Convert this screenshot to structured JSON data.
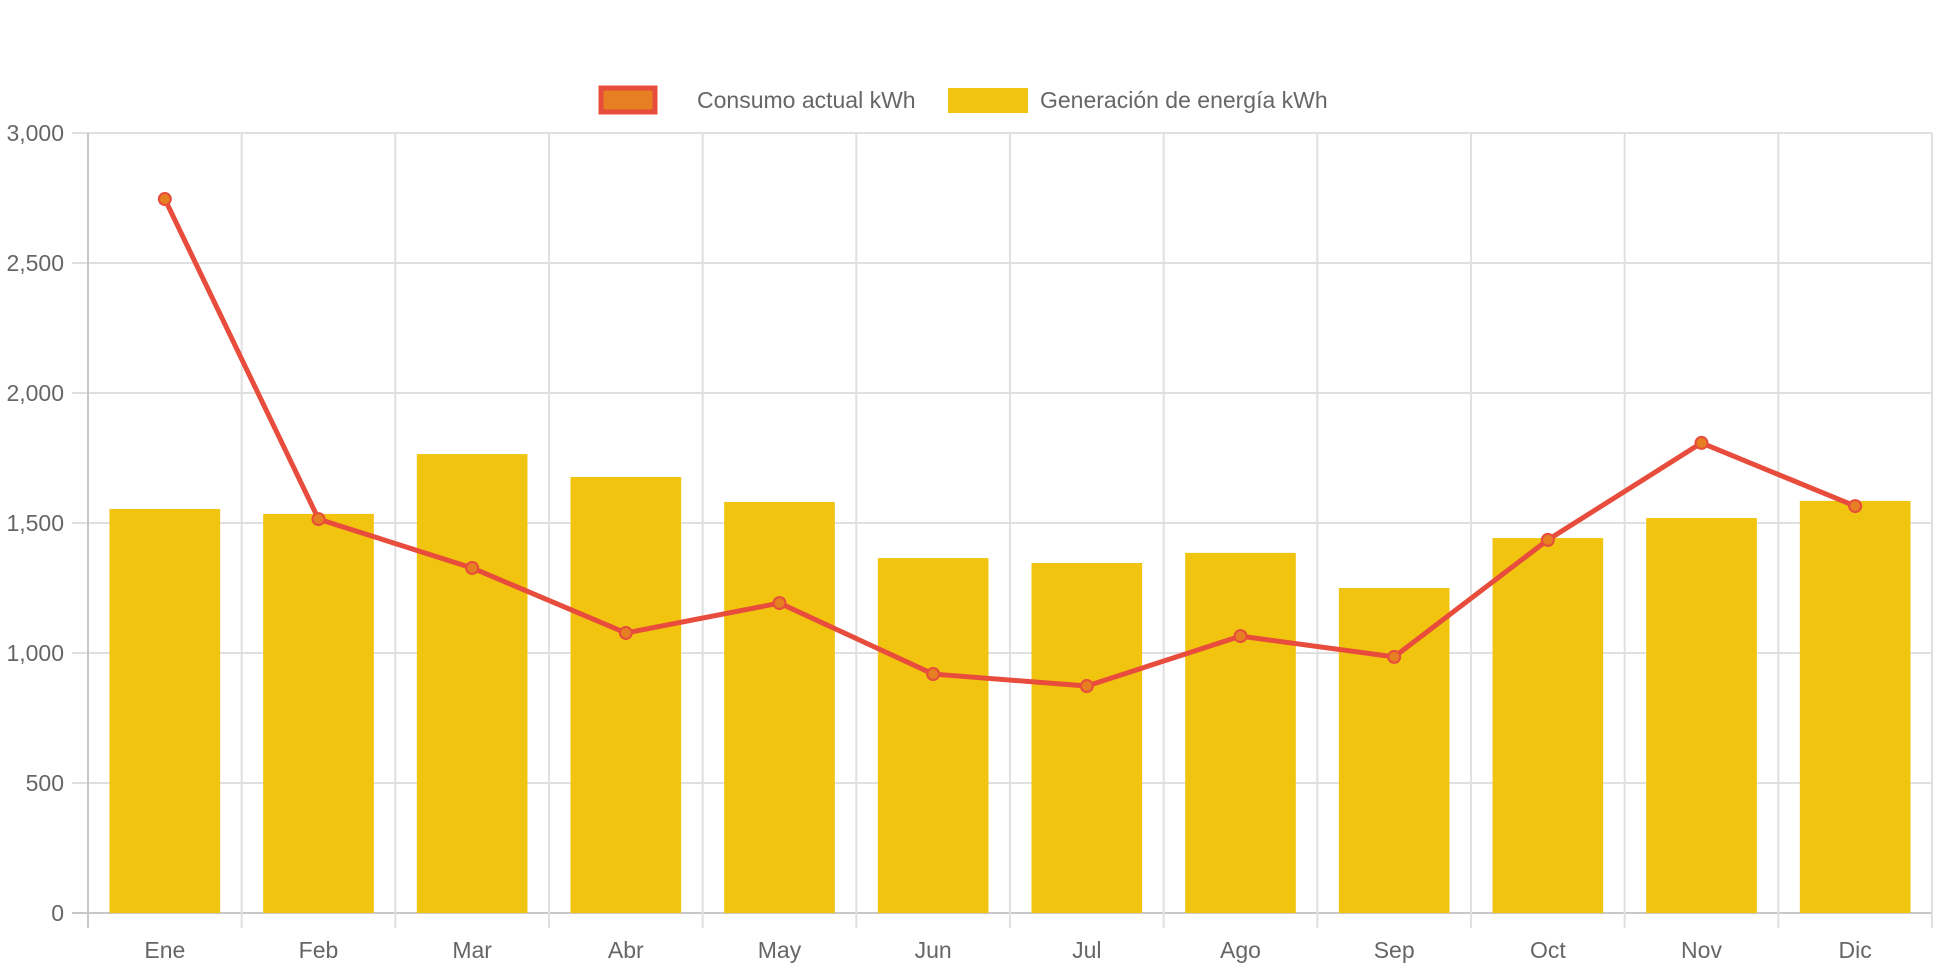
{
  "chart_data": {
    "type": "bar",
    "title": "",
    "xlabel": "",
    "ylabel": "",
    "categories": [
      "Ene",
      "Feb",
      "Mar",
      "Abr",
      "May",
      "Jun",
      "Jul",
      "Ago",
      "Sep",
      "Oct",
      "Nov",
      "Dic"
    ],
    "ylim": [
      0,
      3000
    ],
    "yticks": [
      0,
      500,
      1000,
      1500,
      2000,
      2500,
      3000
    ],
    "ytick_labels": [
      "0",
      "500",
      "1,000",
      "1,500",
      "2,000",
      "2,500",
      "3,000"
    ],
    "grid": true,
    "legend_position": "top",
    "series": [
      {
        "name": "Consumo actual kWh",
        "type": "line",
        "color": "#E74C3C",
        "point_fill": "#E67E22",
        "values": [
          2746,
          1515,
          1327,
          1077,
          1192,
          919,
          873,
          1065,
          985,
          1435,
          1808,
          1565
        ]
      },
      {
        "name": "Generación de energía kWh",
        "type": "bar",
        "color": "#F1C40F",
        "values": [
          1554,
          1535,
          1765,
          1677,
          1581,
          1365,
          1346,
          1385,
          1250,
          1442,
          1519,
          1585
        ]
      }
    ]
  },
  "colors": {
    "grid": "#e0e0e0",
    "axis": "#c8c8c8",
    "text": "#666666"
  }
}
